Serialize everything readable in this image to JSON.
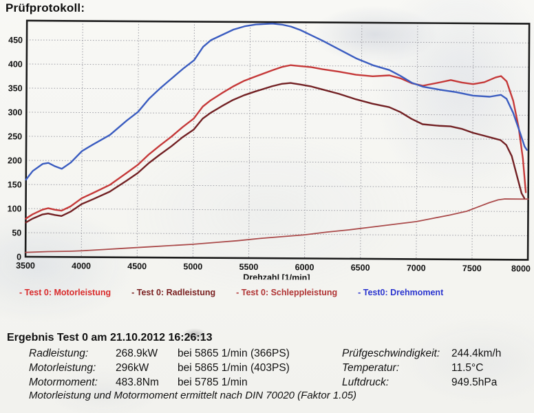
{
  "page_title": "Prüfprotokoll:",
  "chart_data": {
    "type": "line",
    "title": "",
    "xlabel": "Drehzahl [1/min]",
    "ylabel": "",
    "xlim": [
      3500,
      8000
    ],
    "ylim": [
      0,
      490
    ],
    "x_ticks": [
      3500,
      4000,
      4500,
      5000,
      5500,
      6000,
      6500,
      7000,
      7500,
      8000
    ],
    "y_ticks": [
      0,
      50,
      100,
      150,
      200,
      250,
      300,
      350,
      400,
      450
    ],
    "grid": true,
    "grid_color": "#9a9aa2",
    "legend_position": "bottom",
    "draw_order": [
      2,
      1,
      0,
      3
    ],
    "series": [
      {
        "name": "- Test 0: Motorleistung",
        "legend_color": "#d92b2b",
        "color": "#c53838",
        "width": 2.4,
        "points": [
          [
            3500,
            79
          ],
          [
            3560,
            88
          ],
          [
            3650,
            98
          ],
          [
            3700,
            101
          ],
          [
            3760,
            98
          ],
          [
            3820,
            96
          ],
          [
            3900,
            105
          ],
          [
            4000,
            122
          ],
          [
            4100,
            133
          ],
          [
            4250,
            150
          ],
          [
            4400,
            175
          ],
          [
            4500,
            192
          ],
          [
            4600,
            214
          ],
          [
            4700,
            233
          ],
          [
            4800,
            251
          ],
          [
            4900,
            271
          ],
          [
            5000,
            289
          ],
          [
            5080,
            314
          ],
          [
            5150,
            327
          ],
          [
            5250,
            342
          ],
          [
            5350,
            356
          ],
          [
            5450,
            368
          ],
          [
            5550,
            377
          ],
          [
            5700,
            390
          ],
          [
            5785,
            397
          ],
          [
            5865,
            401
          ],
          [
            5950,
            399
          ],
          [
            6050,
            397
          ],
          [
            6150,
            393
          ],
          [
            6300,
            388
          ],
          [
            6450,
            382
          ],
          [
            6600,
            379
          ],
          [
            6750,
            381
          ],
          [
            6850,
            375
          ],
          [
            6950,
            365
          ],
          [
            7050,
            360
          ],
          [
            7200,
            367
          ],
          [
            7300,
            372
          ],
          [
            7400,
            367
          ],
          [
            7500,
            364
          ],
          [
            7600,
            368
          ],
          [
            7700,
            378
          ],
          [
            7750,
            381
          ],
          [
            7800,
            370
          ],
          [
            7860,
            330
          ],
          [
            7910,
            275
          ],
          [
            7950,
            210
          ],
          [
            7978,
            140
          ]
        ]
      },
      {
        "name": "- Test 0: Radleistung",
        "legend_color": "#7a2121",
        "color": "#722023",
        "width": 2.4,
        "points": [
          [
            3500,
            71
          ],
          [
            3560,
            79
          ],
          [
            3650,
            88
          ],
          [
            3700,
            90
          ],
          [
            3760,
            87
          ],
          [
            3820,
            85
          ],
          [
            3900,
            94
          ],
          [
            4000,
            110
          ],
          [
            4100,
            120
          ],
          [
            4250,
            136
          ],
          [
            4400,
            159
          ],
          [
            4500,
            175
          ],
          [
            4600,
            196
          ],
          [
            4700,
            214
          ],
          [
            4800,
            231
          ],
          [
            4900,
            250
          ],
          [
            5000,
            266
          ],
          [
            5080,
            289
          ],
          [
            5150,
            301
          ],
          [
            5250,
            315
          ],
          [
            5350,
            328
          ],
          [
            5450,
            338
          ],
          [
            5550,
            346
          ],
          [
            5700,
            357
          ],
          [
            5785,
            362
          ],
          [
            5865,
            364
          ],
          [
            5950,
            361
          ],
          [
            6050,
            357
          ],
          [
            6150,
            351
          ],
          [
            6300,
            342
          ],
          [
            6450,
            331
          ],
          [
            6600,
            322
          ],
          [
            6750,
            315
          ],
          [
            6850,
            305
          ],
          [
            6950,
            291
          ],
          [
            7050,
            280
          ],
          [
            7200,
            277
          ],
          [
            7300,
            276
          ],
          [
            7400,
            271
          ],
          [
            7500,
            263
          ],
          [
            7600,
            257
          ],
          [
            7700,
            251
          ],
          [
            7750,
            248
          ],
          [
            7800,
            238
          ],
          [
            7850,
            215
          ],
          [
            7900,
            172
          ],
          [
            7940,
            138
          ],
          [
            7965,
            128
          ]
        ]
      },
      {
        "name": "- Test 0: Schleppleistung",
        "legend_color": "#b03434",
        "color": "#aa4a4a",
        "width": 1.8,
        "points": [
          [
            3500,
            9
          ],
          [
            3700,
            11
          ],
          [
            3900,
            12
          ],
          [
            4000,
            13
          ],
          [
            4200,
            16
          ],
          [
            4400,
            19
          ],
          [
            4600,
            22
          ],
          [
            4800,
            25
          ],
          [
            5000,
            28
          ],
          [
            5200,
            32
          ],
          [
            5400,
            36
          ],
          [
            5600,
            41
          ],
          [
            5800,
            45
          ],
          [
            6000,
            49
          ],
          [
            6200,
            55
          ],
          [
            6400,
            60
          ],
          [
            6600,
            66
          ],
          [
            6800,
            72
          ],
          [
            7000,
            78
          ],
          [
            7150,
            85
          ],
          [
            7300,
            92
          ],
          [
            7450,
            100
          ],
          [
            7550,
            109
          ],
          [
            7650,
            118
          ],
          [
            7730,
            124
          ],
          [
            7790,
            126
          ],
          [
            8000,
            126
          ]
        ]
      },
      {
        "name": "- Test0: Drehmoment",
        "legend_color": "#2b35cf",
        "color": "#3a5cc0",
        "width": 2.4,
        "points": [
          [
            3500,
            160
          ],
          [
            3560,
            178
          ],
          [
            3650,
            193
          ],
          [
            3700,
            195
          ],
          [
            3760,
            188
          ],
          [
            3820,
            183
          ],
          [
            3900,
            196
          ],
          [
            4000,
            220
          ],
          [
            4100,
            234
          ],
          [
            4250,
            254
          ],
          [
            4400,
            284
          ],
          [
            4500,
            302
          ],
          [
            4600,
            330
          ],
          [
            4700,
            352
          ],
          [
            4800,
            372
          ],
          [
            4900,
            392
          ],
          [
            5000,
            410
          ],
          [
            5080,
            438
          ],
          [
            5150,
            452
          ],
          [
            5250,
            463
          ],
          [
            5350,
            474
          ],
          [
            5450,
            481
          ],
          [
            5550,
            485
          ],
          [
            5700,
            487
          ],
          [
            5785,
            485
          ],
          [
            5865,
            481
          ],
          [
            5950,
            474
          ],
          [
            6050,
            463
          ],
          [
            6150,
            452
          ],
          [
            6300,
            434
          ],
          [
            6450,
            416
          ],
          [
            6600,
            402
          ],
          [
            6750,
            392
          ],
          [
            6850,
            380
          ],
          [
            6950,
            366
          ],
          [
            7050,
            358
          ],
          [
            7200,
            352
          ],
          [
            7350,
            347
          ],
          [
            7500,
            340
          ],
          [
            7650,
            338
          ],
          [
            7750,
            342
          ],
          [
            7800,
            334
          ],
          [
            7860,
            305
          ],
          [
            7920,
            266
          ],
          [
            7965,
            235
          ],
          [
            7985,
            228
          ]
        ]
      }
    ]
  },
  "results": {
    "heading": "Ergebnis Test 0 am 21.10.2012 16:26:13",
    "rows": [
      {
        "label": "Radleistung:",
        "value": "268.9kW",
        "detail": "bei 5865 1/min (366PS)"
      },
      {
        "label": "Motorleistung:",
        "value": "296kW",
        "detail": "bei 5865 1/min (403PS)"
      },
      {
        "label": "Motormoment:",
        "value": "483.8Nm",
        "detail": "bei 5785 1/min"
      }
    ],
    "conditions": [
      {
        "label": "Prüfgeschwindigkeit:",
        "value": "244.4km/h"
      },
      {
        "label": "Temperatur:",
        "value": "11.5°C"
      },
      {
        "label": "Luftdruck:",
        "value": "949.5hPa"
      }
    ],
    "footnote": "Motorleistung und Motormoment ermittelt nach DIN 70020 (Faktor 1.05)"
  }
}
